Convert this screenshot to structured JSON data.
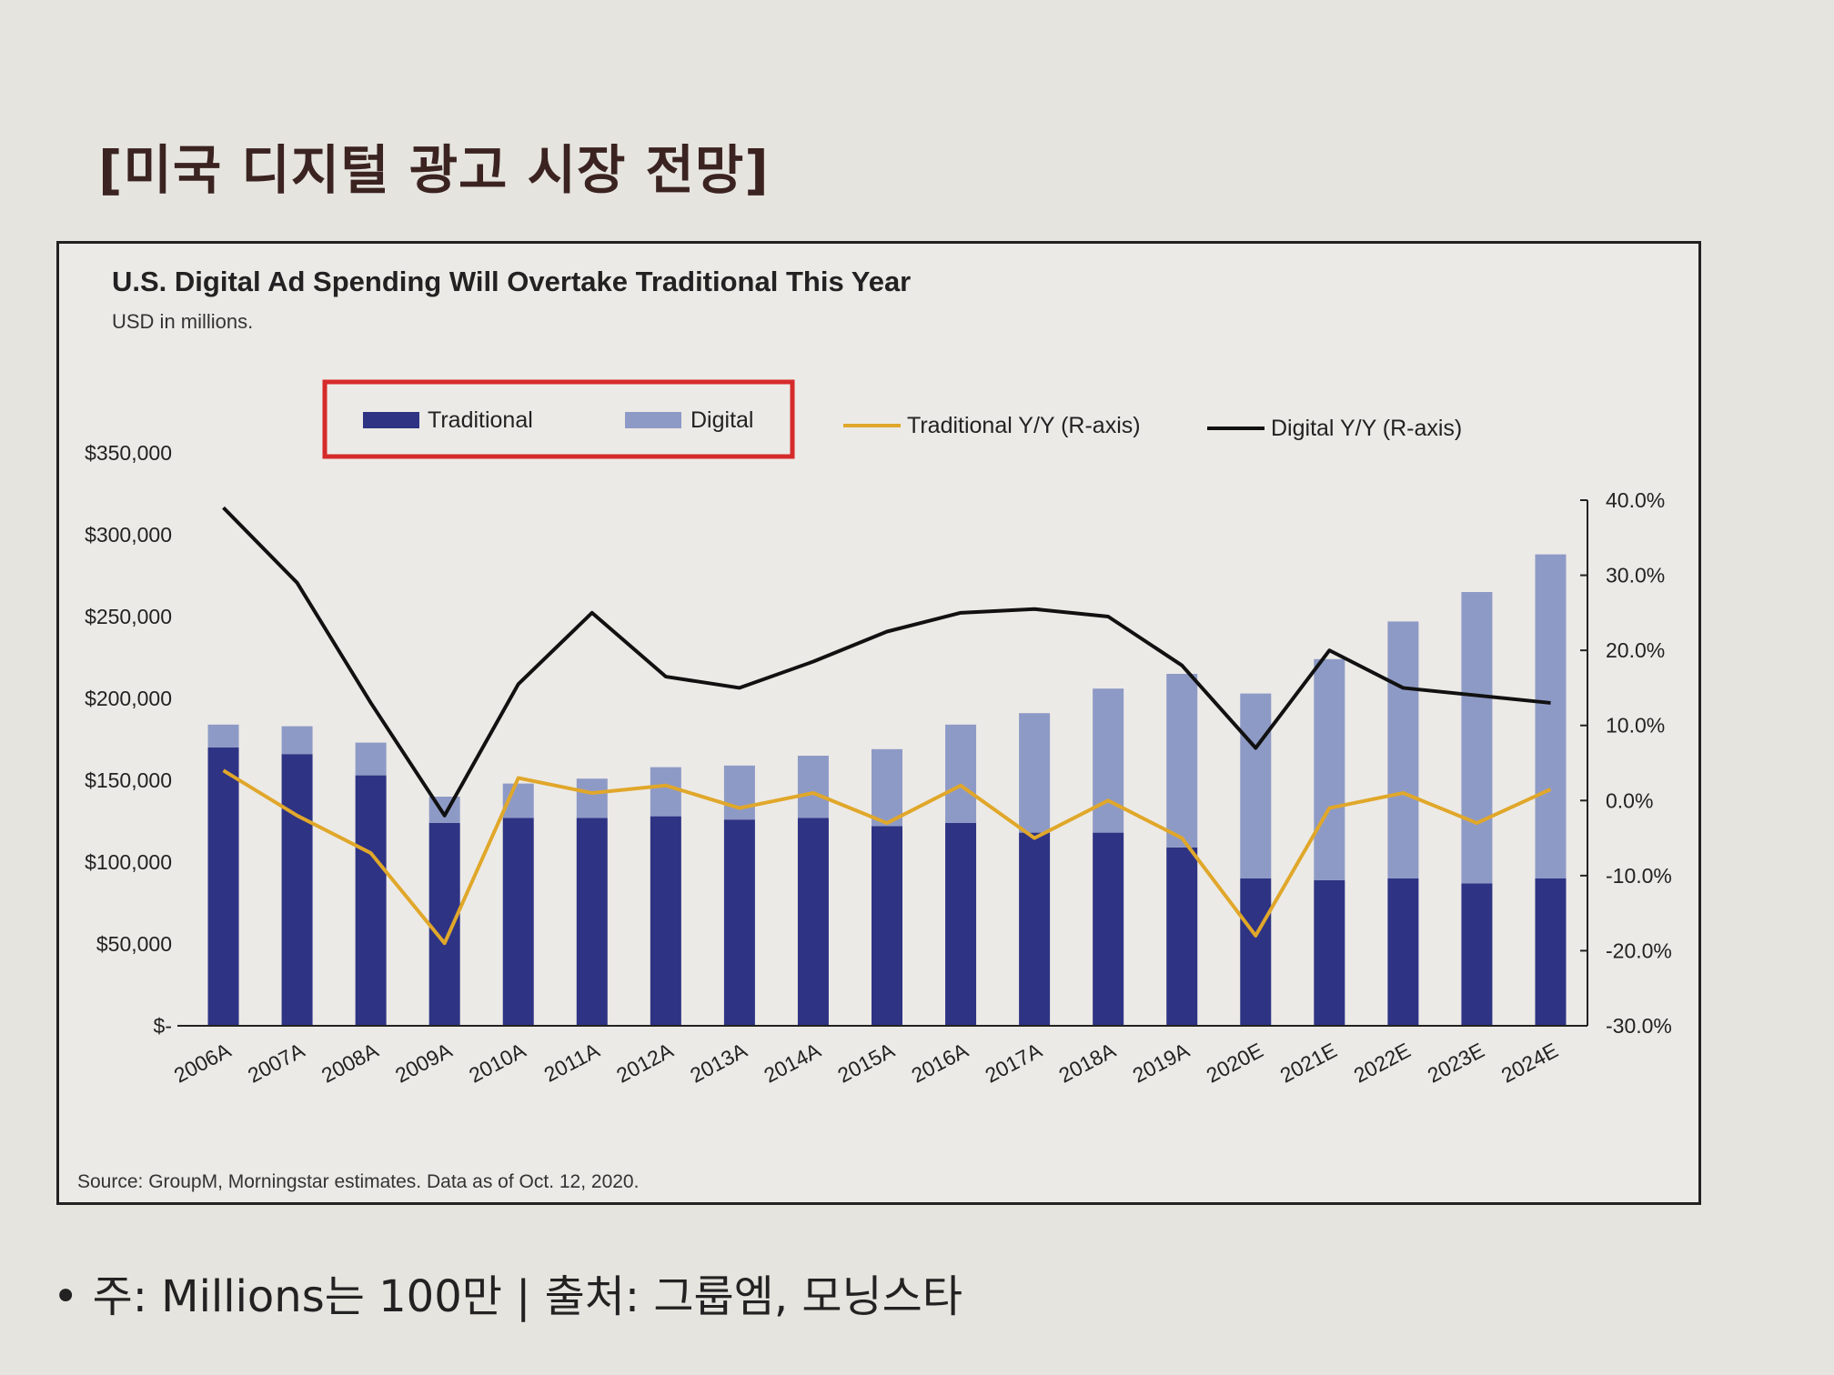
{
  "page": {
    "title": "[미국 디지털 광고 시장 전망]",
    "footnote": "• 주: Millions는 100만 | 출처: 그룹엠, 모닝스타"
  },
  "colors": {
    "traditional": "#2e3384",
    "digital": "#8e9ac6",
    "traditional_yy": "#e0a72a",
    "digital_yy": "#111111",
    "highlight": "#d62a2a"
  },
  "chart_data": {
    "type": "bar",
    "stacked": true,
    "title": "U.S. Digital Ad Spending Will Overtake Traditional This Year",
    "subtitle": "USD in millions.",
    "source": "Source: GroupM, Morningstar estimates. Data as of Oct. 12, 2020.",
    "categories": [
      "2006A",
      "2007A",
      "2008A",
      "2009A",
      "2010A",
      "2011A",
      "2012A",
      "2013A",
      "2014A",
      "2015A",
      "2016A",
      "2017A",
      "2018A",
      "2019A",
      "2020E",
      "2021E",
      "2022E",
      "2023E",
      "2024E"
    ],
    "series": [
      {
        "name": "Traditional",
        "type": "bar",
        "axis": "left",
        "values": [
          170000,
          166000,
          153000,
          124000,
          127000,
          127000,
          128000,
          126000,
          127000,
          122000,
          124000,
          118000,
          118000,
          109000,
          90000,
          89000,
          90000,
          87000,
          90000
        ]
      },
      {
        "name": "Digital",
        "type": "bar",
        "axis": "left",
        "values": [
          14000,
          17000,
          20000,
          16000,
          21000,
          24000,
          30000,
          33000,
          38000,
          47000,
          60000,
          73000,
          88000,
          106000,
          113000,
          135000,
          157000,
          178000,
          198000
        ]
      },
      {
        "name": "Traditional Y/Y (R-axis)",
        "type": "line",
        "axis": "right",
        "values": [
          4.0,
          -2.0,
          -7.0,
          -19.0,
          3.0,
          1.0,
          2.0,
          -1.0,
          1.0,
          -3.0,
          2.0,
          -5.0,
          0.0,
          -5.0,
          -18.0,
          -1.0,
          1.0,
          -3.0,
          1.5
        ]
      },
      {
        "name": "Digital Y/Y (R-axis)",
        "type": "line",
        "axis": "right",
        "values": [
          39.0,
          29.0,
          13.0,
          -2.0,
          15.5,
          25.0,
          16.5,
          15.0,
          18.5,
          22.5,
          25.0,
          25.5,
          24.5,
          18.0,
          7.0,
          20.0,
          15.0,
          14.0,
          13.0
        ]
      }
    ],
    "y_left": {
      "min": 0,
      "max": 350000,
      "ticks": [
        0,
        50000,
        100000,
        150000,
        200000,
        250000,
        300000,
        350000
      ],
      "tick_labels": [
        "$-",
        "$50,000",
        "$100,000",
        "$150,000",
        "$200,000",
        "$250,000",
        "$300,000",
        "$350,000"
      ]
    },
    "y_right": {
      "min": -30,
      "max": 40,
      "ticks": [
        -30,
        -20,
        -10,
        0,
        10,
        20,
        30,
        40
      ],
      "tick_labels": [
        "-30.0%",
        "-20.0%",
        "-10.0%",
        "0.0%",
        "10.0%",
        "20.0%",
        "30.0%",
        "40.0%"
      ]
    },
    "legend": {
      "placement": "top",
      "highlighted": [
        "Traditional",
        "Digital"
      ]
    },
    "grid": false
  }
}
